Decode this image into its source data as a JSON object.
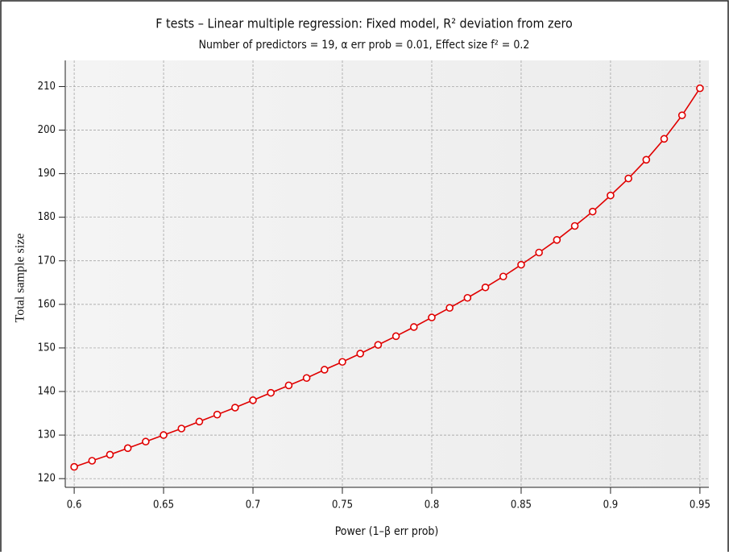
{
  "chart_data": {
    "type": "line",
    "title": "F tests – Linear multiple regression: Fixed model, R² deviation from zero",
    "subtitle": "Number of predictors = 19, α err prob = 0.01, Effect size f² = 0.2",
    "x_label": "Power (1–β err prob)",
    "y_label": "Total sample size",
    "x": [
      0.6,
      0.61,
      0.62,
      0.63,
      0.64,
      0.65,
      0.66,
      0.67,
      0.68,
      0.69,
      0.7,
      0.71,
      0.72,
      0.73,
      0.74,
      0.75,
      0.76,
      0.77,
      0.78,
      0.79,
      0.8,
      0.81,
      0.82,
      0.83,
      0.84,
      0.85,
      0.86,
      0.87,
      0.88,
      0.89,
      0.9,
      0.91,
      0.92,
      0.93,
      0.94,
      0.95
    ],
    "series": [
      {
        "color": "#e00000",
        "values": [
          122.7,
          124.1,
          125.5,
          127.0,
          128.5,
          130.0,
          131.5,
          133.1,
          134.7,
          136.3,
          138.0,
          139.7,
          141.4,
          143.1,
          145.0,
          146.8,
          148.7,
          150.7,
          152.7,
          154.8,
          157.0,
          159.2,
          161.5,
          163.9,
          166.4,
          169.1,
          171.9,
          174.8,
          178.0,
          181.3,
          185.0,
          188.9,
          193.2,
          198.0,
          203.4,
          209.6
        ]
      }
    ],
    "xlim": [
      0.595,
      0.955
    ],
    "ylim": [
      118,
      216
    ],
    "xticks": [
      0.6,
      0.65,
      0.7,
      0.75,
      0.8,
      0.85,
      0.9,
      0.95
    ],
    "yticks": [
      120,
      130,
      140,
      150,
      160,
      170,
      180,
      190,
      200,
      210
    ],
    "grid": true
  }
}
